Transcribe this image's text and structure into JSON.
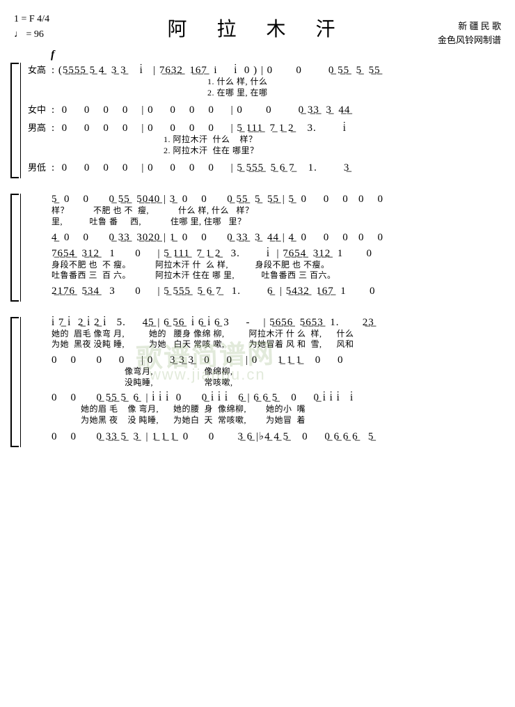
{
  "header": {
    "key": "1 = F  4/4",
    "tempo": "♩ = 96",
    "title": "阿 拉 木 汗",
    "subtitle1": "新 疆 民 歌",
    "subtitle2": "金色风铃网制谱",
    "dynamic": "f"
  },
  "partLabels": {
    "sop": "女高",
    "alto": "女中",
    "tenor": "男高",
    "bass": "男低"
  },
  "system1": {
    "sop": ": (5̲5̲5̲5̲ 5̲ 4̲  3̲ 3̲    i̇   | 7̲6̲3̲2̲  1̲6̲7̲  i     i̇  0 ) | 0       0        0̲ 5̲5̲  5̲  5̲5̲",
    "sopLyr1": "                                                                1. 什么 样, 什么",
    "sopLyr2": "                                                                2. 在哪 里, 在哪",
    "alto": ":  0     0    0    0    | 0     0    0    0     | 0       0        0̲ 3̲3̲  3̲  4̲4̲",
    "tenor": ":  0     0    0    0    | 0     0    0    0     | 5̲ 1̲1̲1̲  7̲ 1̲ 2̲    3.        i̇",
    "tenorLyr1": "                                              1. 阿拉木汗  什么    样？",
    "tenorLyr2": "                                              2. 阿拉木汗  住在 哪里？",
    "bass": ":  0     0    0    0    | 0     0    0    0     | 5̲ 5̲5̲5̲  5̲ 6̲ 7̲    1.        3̲"
  },
  "system2": {
    "sop": "5̲  0    0      0̲ 5̲5̲  5̲0̲4̲0̲ | 3̲  0    0      0̲ 5̲5̲  5̲  5̲5̲ | 5̲  0     0    0   0    0",
    "sopLyr1": "样？          不肥 也 不  瘦,            什么 样, 什么   样？",
    "sopLyr2": "里,           吐鲁 番     西,            住哪 里, 住哪   里？",
    "alto": "4̲  0    0      0̲ 3̲3̲  3̲0̲2̲0̲ | 1̲  0    0      0̲ 3̲3̲  3̲  4̲4̲ | 4̲  0     0    0   0    0",
    "tenor": "7̲6̲5̲4̲  3̲1̲2̲   1      0     | 5̲ 1̲1̲1̲  7̲ 1̲ 2̲   3.        i̇  | 7̲6̲5̲4̲  3̲1̲2̲  1       0",
    "tenorLyr1": "身段不肥 也  不 瘦。          阿拉木汗 什  么 样,           身段不肥 也 不瘦。",
    "tenorLyr2": "吐鲁番西 三  百 六。          阿拉木汗 住在 哪 里,           吐鲁番西 三 百六。",
    "bass": "2̲1̲7̲6̲  5̲3̲4̲   3      0     | 5̲ 5̲5̲5̲  5̲ 6̲ 7̲   1.        6̲  | 5̲4̲3̲2̲  1̲6̲7̲  1       0"
  },
  "system3": {
    "sop": "i̇ 7̲ i̇  2̲ i̇ 2̲ i̇   5.     4̲5̲ | 6̲ 5̲6̲  i̇ 6̲ i̇ 6̲ 3     -    | 5̲6̲5̲6̲  5̲6̲5̲3̲  1.       2̲3̲",
    "sopLyr1": "她的  眉毛 像弯 月,          她的   腰身 像绵 柳,          阿拉木汗 什 么  样,      什么",
    "sopLyr2": "为她  黑夜 没盹 睡,          为她   白天 常咳 嗽,          为她冒着 风 和  雪,      风和",
    "alto": "0    0      0     0     | 0     3̲ 3̲ 3̲   0     0    | 0      1̲ 1̲ 1̲    0     0",
    "altoLyr1": "                              像弯月,                     像绵柳,",
    "altoLyr2": "                              没盹睡,                     常咳嗽,",
    "tenor": "0    0      0̲ 5̲5̲ 5̲  6̲  | i̇ i̇ i̇  0      0̲ i̇ i̇ i̇   6̲ | 6̲ 6̲ 5̲    0     0̲ i̇ i̇ i̇   i̇",
    "tenorLyr1": "            她的眉 毛    像 弯月,      她的腰  身  像绵柳,        她的小  嘴",
    "tenorLyr2": "            为她黑 夜    没 盹睡,      为她白  天  常咳嗽,        为她冒  着",
    "bass": "0    0      0̲ 3̲3̲ 5̲  3̲  | 1̲ 1̲ 1̲  0      0       3̲ 6̲ |♭4̲ 4̲ 5̲    0     0̲ 6̲ 6̲ 6̲   5̲"
  },
  "watermark": {
    "line1": "歌谱简谱网",
    "line2": "www.jianpu.cn"
  }
}
